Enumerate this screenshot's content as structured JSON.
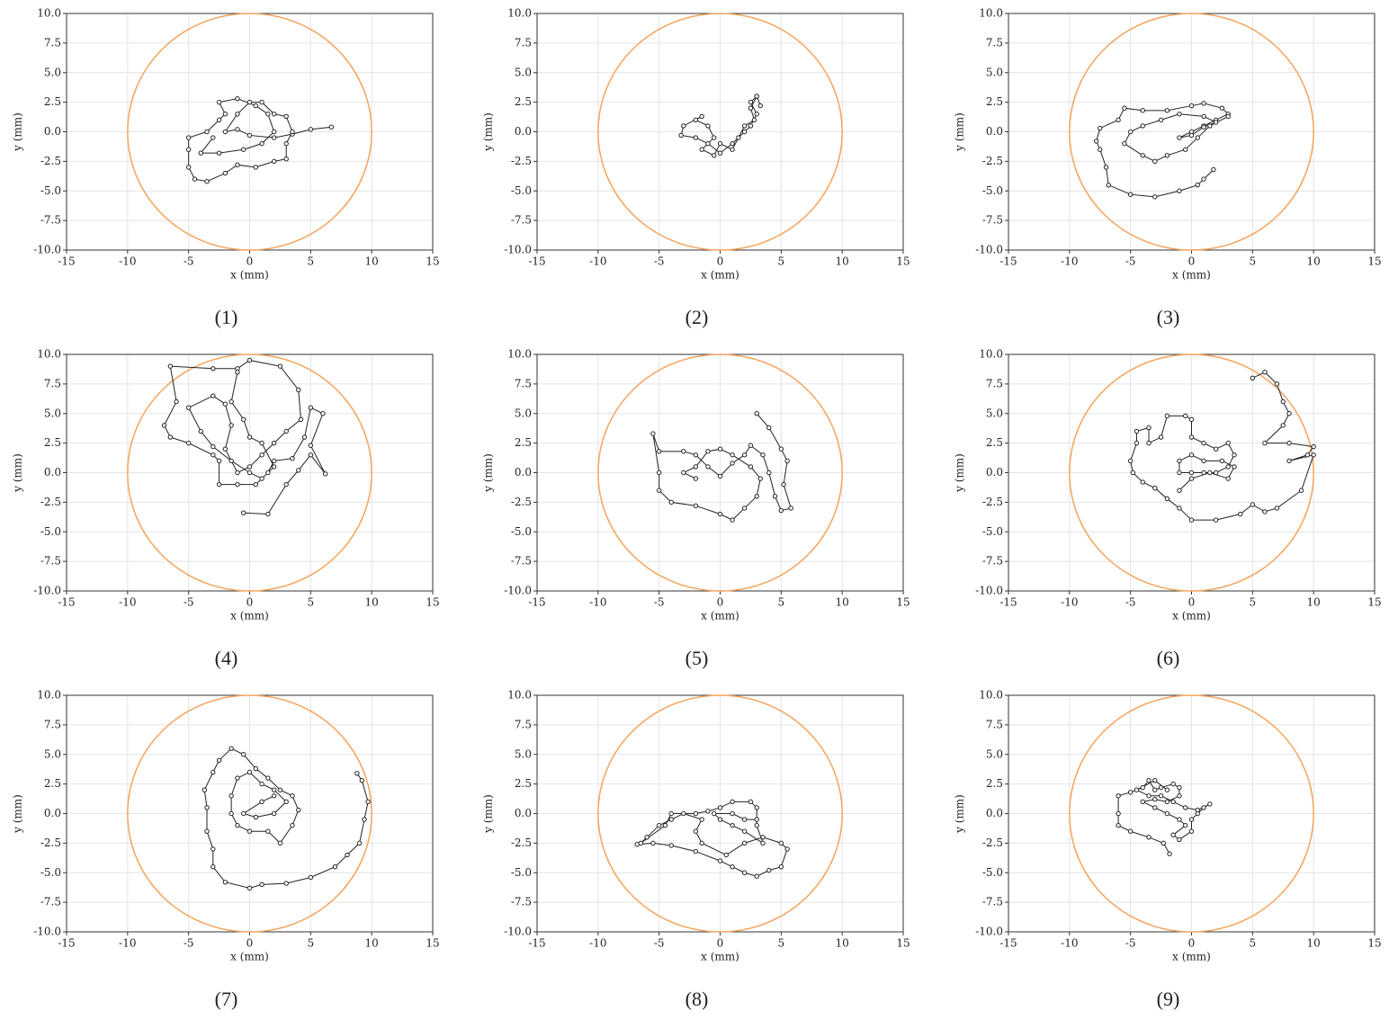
{
  "chart_data": [
    {
      "type": "line",
      "caption": "(1)",
      "x_label": "x (mm)",
      "y_label": "y (mm)",
      "color": "#222222",
      "grid": true,
      "circle": {
        "radius": 10,
        "color": "#f5a35c"
      },
      "xlim": [
        -15,
        15
      ],
      "ylim": [
        -10,
        10
      ],
      "xticks": [
        -15,
        -10,
        -5,
        0,
        5,
        10,
        15
      ],
      "yticks": [
        {
          "value": 10,
          "label": "10.0"
        },
        7.5,
        {
          "value": 5,
          "label": "5.0"
        },
        2.5,
        {
          "value": 0,
          "label": "0.0"
        },
        -2.5,
        {
          "value": -5,
          "label": "-5.0"
        },
        -7.5,
        {
          "value": -10,
          "label": "-10.0"
        }
      ],
      "x": [
        6.7,
        5,
        3.5,
        2,
        0,
        -1,
        -2,
        -1,
        0,
        1,
        2,
        3,
        3.5,
        3,
        3,
        2,
        0.5,
        -1,
        -2,
        -3.5,
        -4.5,
        -5,
        -5,
        -5,
        -3.5,
        -2.5,
        -2,
        -2.5,
        -1,
        0.5,
        1.5,
        2,
        1,
        -0.5,
        -2.5,
        -4,
        -3
      ],
      "y": [
        0.4,
        0.2,
        -0.2,
        -0.5,
        -0.3,
        0.2,
        0,
        1.5,
        2.5,
        2.5,
        1.5,
        1.3,
        0,
        -1,
        -2.3,
        -2.5,
        -3,
        -2.8,
        -3.5,
        -4.2,
        -4,
        -3,
        -1.5,
        -0.5,
        0,
        1,
        1.5,
        2.5,
        2.8,
        2.2,
        1.5,
        0,
        -1,
        -1.5,
        -1.8,
        -1.8,
        -0.5
      ]
    },
    {
      "type": "line",
      "caption": "(2)",
      "x_label": "x (mm)",
      "y_label": "y (mm)",
      "color": "#222222",
      "grid": true,
      "circle": {
        "radius": 10,
        "color": "#f5a35c"
      },
      "xlim": [
        -15,
        15
      ],
      "ylim": [
        -10,
        10
      ],
      "xticks": [
        -15,
        -10,
        -5,
        0,
        5,
        10,
        15
      ],
      "yticks": [
        {
          "value": 10,
          "label": "10.0"
        },
        7.5,
        {
          "value": 5,
          "label": "5.0"
        },
        2.5,
        {
          "value": 0,
          "label": "0.0"
        },
        -2.5,
        {
          "value": -5,
          "label": "-5.0"
        },
        -7.5,
        {
          "value": -10,
          "label": "-10.0"
        }
      ],
      "x": [
        3.3,
        3,
        2.5,
        2.8,
        2,
        1.5,
        1,
        0,
        -0.5,
        -1.5,
        -0.5,
        -1,
        -2,
        -1.5,
        -3,
        -3.2,
        -2,
        -1,
        0,
        1,
        2,
        2.5,
        3,
        2.5,
        3
      ],
      "y": [
        2.2,
        3,
        2,
        1,
        0.5,
        -0.5,
        -1.5,
        -1,
        -2,
        -1.5,
        -0.5,
        0.5,
        1,
        1.3,
        0.5,
        -0.3,
        -0.5,
        -1,
        -1.8,
        -1,
        0,
        0.5,
        1.5,
        2.5,
        3
      ]
    },
    {
      "type": "line",
      "caption": "(3)",
      "x_label": "x (mm)",
      "y_label": "y (mm)",
      "color": "#222222",
      "grid": true,
      "circle": {
        "radius": 10,
        "color": "#f5a35c"
      },
      "xlim": [
        -15,
        15
      ],
      "ylim": [
        -10,
        10
      ],
      "xticks": [
        -15,
        -10,
        -5,
        0,
        5,
        10,
        15
      ],
      "yticks": [
        {
          "value": 10,
          "label": "10.0"
        },
        7.5,
        {
          "value": 5,
          "label": "5.0"
        },
        2.5,
        {
          "value": 0,
          "label": "0.0"
        },
        -2.5,
        {
          "value": -5,
          "label": "-5.0"
        },
        -7.5,
        {
          "value": -10,
          "label": "-10.0"
        }
      ],
      "x": [
        1.8,
        1,
        0.5,
        -1,
        -3,
        -5,
        -6.8,
        -7,
        -7.5,
        -7.8,
        -7.5,
        -6,
        -5.5,
        -4,
        -2,
        0,
        1,
        2.5,
        3,
        2,
        1,
        0,
        -1,
        0,
        1,
        2,
        1,
        -1,
        -2.5,
        -4,
        -5,
        -5.5,
        -4,
        -3,
        -2,
        -0.5,
        0.5,
        1.5,
        3
      ],
      "y": [
        -3.2,
        -4,
        -4.5,
        -5,
        -5.5,
        -5.3,
        -4.5,
        -3,
        -1.5,
        -0.8,
        0.3,
        1,
        2,
        1.8,
        1.8,
        2.2,
        2.4,
        2,
        1.5,
        1,
        0.5,
        0,
        -0.5,
        -0.3,
        0.4,
        0.8,
        1.3,
        1.5,
        1,
        0.5,
        0,
        -1,
        -2,
        -2.5,
        -2,
        -1.5,
        -0.5,
        0.5,
        1.3
      ]
    },
    {
      "type": "line",
      "caption": "(4)",
      "x_label": "x (mm)",
      "y_label": "y (mm)",
      "color": "#222222",
      "grid": true,
      "circle": {
        "radius": 10,
        "color": "#f5a35c"
      },
      "xlim": [
        -15,
        15
      ],
      "ylim": [
        -10,
        10
      ],
      "xticks": [
        -15,
        -10,
        -5,
        0,
        5,
        10,
        15
      ],
      "yticks": [
        {
          "value": 10,
          "label": "10.0"
        },
        7.5,
        {
          "value": 5,
          "label": "5.0"
        },
        2.5,
        {
          "value": 0,
          "label": "0.0"
        },
        -2.5,
        {
          "value": -5,
          "label": "-5.0"
        },
        -7.5,
        {
          "value": -10,
          "label": "-10.0"
        }
      ],
      "x": [
        -0.5,
        1.5,
        3,
        4,
        5,
        6.2,
        5,
        6,
        5,
        4.5,
        3.5,
        2,
        1.5,
        0.5,
        -1,
        -2.5,
        -2.5,
        -3,
        -5,
        -6.5,
        -7,
        -6,
        -6.5,
        -3,
        -1,
        0,
        2.5,
        4,
        4.2,
        3,
        2,
        1,
        0,
        -1,
        -2,
        -1.5,
        -2,
        -3,
        -5,
        -4,
        -3,
        -1.5,
        0,
        1,
        2,
        1,
        0,
        -0.5,
        -1.5,
        -1
      ],
      "y": [
        -3.4,
        -3.5,
        -1,
        0.2,
        1.5,
        -0.1,
        2.3,
        5,
        5.5,
        3,
        1.2,
        1,
        0,
        -1,
        -1,
        -1,
        1,
        1.5,
        2.5,
        3,
        4,
        6,
        9,
        8.8,
        8.8,
        9.5,
        9,
        7,
        4.5,
        3.5,
        2.5,
        1.5,
        0.5,
        0,
        2,
        4,
        5.8,
        6.5,
        5.5,
        3.5,
        2.2,
        1,
        0,
        -0.5,
        0.5,
        2.5,
        3,
        4.5,
        6,
        8.5
      ]
    },
    {
      "type": "line",
      "caption": "(5)",
      "x_label": "x (mm)",
      "y_label": "y (mm)",
      "color": "#222222",
      "grid": true,
      "circle": {
        "radius": 10,
        "color": "#f5a35c"
      },
      "xlim": [
        -15,
        15
      ],
      "ylim": [
        -10,
        10
      ],
      "xticks": [
        -15,
        -10,
        -5,
        0,
        5,
        10,
        15
      ],
      "yticks": [
        {
          "value": 10,
          "label": "10.0"
        },
        7.5,
        {
          "value": 5,
          "label": "5.0"
        },
        2.5,
        {
          "value": 0,
          "label": "0.0"
        },
        -2.5,
        {
          "value": -5,
          "label": "-5.0"
        },
        -7.5,
        {
          "value": -10,
          "label": "-10.0"
        }
      ],
      "x": [
        3,
        4,
        5,
        5.5,
        5.2,
        5.8,
        5,
        4.5,
        4,
        3.5,
        2.5,
        2,
        1,
        0,
        -1,
        -2,
        -3,
        -5,
        -5.5,
        -5,
        -5,
        -4,
        -2,
        0,
        1,
        2,
        3,
        3.3,
        2.5,
        1,
        0,
        -1,
        -2,
        -3,
        -2
      ],
      "y": [
        5,
        3.8,
        2,
        1,
        -1,
        -3,
        -3.2,
        -2,
        0,
        1.5,
        2.3,
        1.5,
        0.8,
        -0.3,
        0.5,
        1.5,
        1.8,
        1.8,
        3.3,
        0,
        -1.5,
        -2.5,
        -2.8,
        -3.5,
        -4,
        -3,
        -2,
        -0.5,
        0.5,
        1.5,
        2,
        1.8,
        0.5,
        0,
        -0.5
      ]
    },
    {
      "type": "line",
      "caption": "(6)",
      "x_label": "x (mm)",
      "y_label": "y (mm)",
      "color": "#222222",
      "grid": true,
      "circle": {
        "radius": 10,
        "color": "#f5a35c"
      },
      "xlim": [
        -15,
        15
      ],
      "ylim": [
        -10,
        10
      ],
      "xticks": [
        -15,
        -10,
        -5,
        0,
        5,
        10,
        15
      ],
      "yticks": [
        {
          "value": 10,
          "label": "10.0"
        },
        7.5,
        {
          "value": 5,
          "label": "5.0"
        },
        2.5,
        {
          "value": 0,
          "label": "0.0"
        },
        -2.5,
        {
          "value": -5,
          "label": "-5.0"
        },
        -7.5,
        {
          "value": -10,
          "label": "-10.0"
        }
      ],
      "x": [
        5,
        6,
        7,
        7.5,
        8,
        7.5,
        6,
        8,
        10,
        9.5,
        8,
        10,
        9,
        7,
        6,
        5,
        4,
        2,
        0,
        -1,
        -2,
        -3,
        -4,
        -4.8,
        -5,
        -4.5,
        -4.5,
        -3.5,
        -3.5,
        -2.5,
        -2,
        -0.5,
        0,
        0,
        1,
        2,
        3,
        3.5,
        3,
        2,
        1,
        0,
        -1,
        -1,
        0,
        1,
        2.5,
        3.5,
        3,
        1.5,
        0,
        -1
      ],
      "y": [
        8,
        8.5,
        7.5,
        6,
        5,
        4,
        2.5,
        2.5,
        2.2,
        1.5,
        1,
        1.5,
        -1.5,
        -3,
        -3.3,
        -2.7,
        -3.5,
        -4,
        -4,
        -3,
        -2.2,
        -1.3,
        -0.8,
        0,
        1,
        2.5,
        3.5,
        3.8,
        2.5,
        3,
        4.8,
        4.8,
        4.5,
        3,
        2.5,
        2,
        2.5,
        1.5,
        0.5,
        0,
        0,
        0,
        0,
        1,
        1.5,
        1,
        1,
        0.5,
        -0.5,
        0,
        -0.5,
        -1.5
      ]
    },
    {
      "type": "line",
      "caption": "(7)",
      "x_label": "x (mm)",
      "y_label": "y (mm)",
      "color": "#222222",
      "grid": true,
      "circle": {
        "radius": 10,
        "color": "#f5a35c"
      },
      "xlim": [
        -15,
        15
      ],
      "ylim": [
        -10,
        10
      ],
      "xticks": [
        -15,
        -10,
        -5,
        0,
        5,
        10,
        15
      ],
      "yticks": [
        {
          "value": 10,
          "label": "10.0"
        },
        7.5,
        {
          "value": 5,
          "label": "5.0"
        },
        2.5,
        {
          "value": 0,
          "label": "0.0"
        },
        -2.5,
        {
          "value": -5,
          "label": "-5.0"
        },
        -7.5,
        {
          "value": -10,
          "label": "-10.0"
        }
      ],
      "x": [
        8.8,
        9.2,
        9.7,
        9.4,
        9,
        8,
        7,
        5,
        3,
        1,
        0,
        -2,
        -3,
        -3,
        -3.5,
        -3.5,
        -3.7,
        -3,
        -2.5,
        -1.5,
        -0.5,
        0.5,
        1.5,
        2.5,
        3.5,
        4,
        3.5,
        2.5,
        1.5,
        0,
        -1,
        -1.5,
        -1.5,
        -1,
        0,
        1,
        2,
        3,
        2,
        0.5,
        -0.5,
        1,
        2
      ],
      "y": [
        3.4,
        2.8,
        1,
        -0.5,
        -2.5,
        -3.5,
        -4.5,
        -5.4,
        -5.9,
        -6,
        -6.3,
        -5.8,
        -4.5,
        -3,
        -1.5,
        0.5,
        2,
        3.5,
        4.5,
        5.5,
        5,
        3.8,
        3,
        2,
        1.5,
        0.3,
        -1,
        -2.5,
        -1.5,
        -1.5,
        -1,
        0,
        1.5,
        3,
        3.5,
        2.5,
        2,
        1,
        0,
        -0.3,
        0,
        1,
        1.5
      ]
    },
    {
      "type": "line",
      "caption": "(8)",
      "x_label": "x (mm)",
      "y_label": "y (mm)",
      "color": "#222222",
      "grid": true,
      "circle": {
        "radius": 10,
        "color": "#f5a35c"
      },
      "xlim": [
        -15,
        15
      ],
      "ylim": [
        -10,
        10
      ],
      "xticks": [
        -15,
        -10,
        -5,
        0,
        5,
        10,
        15
      ],
      "yticks": [
        {
          "value": 10,
          "label": "10.0"
        },
        7.5,
        {
          "value": 5,
          "label": "5.0"
        },
        2.5,
        {
          "value": 0,
          "label": "0.0"
        },
        -2.5,
        {
          "value": -5,
          "label": "-5.0"
        },
        -7.5,
        {
          "value": -10,
          "label": "-10.0"
        }
      ],
      "x": [
        -6.8,
        -5.5,
        -4,
        -2,
        0,
        1,
        2,
        3,
        4,
        5,
        5.5,
        5,
        3.5,
        2,
        0.5,
        -1.5,
        -2,
        -1.5,
        -3,
        -4,
        -5,
        -6,
        -6.5,
        -4.5,
        -4,
        -2,
        -1,
        0,
        1,
        2.5,
        3,
        3,
        3.5,
        2,
        1,
        0,
        -0.5,
        1,
        2,
        3
      ],
      "y": [
        -2.6,
        -2.5,
        -2.7,
        -3.2,
        -4,
        -4.5,
        -5,
        -5.3,
        -4.8,
        -4.5,
        -3,
        -2.5,
        -2,
        -2.5,
        -3.5,
        -2.5,
        -1.5,
        -0.5,
        0,
        -0.5,
        -1,
        -2,
        -2.5,
        -1,
        0,
        0,
        0.2,
        0.5,
        1,
        1,
        0.5,
        -1,
        -2.5,
        -1.5,
        -1,
        -0.5,
        0,
        0,
        -0.5,
        -0.5
      ]
    },
    {
      "type": "line",
      "caption": "(9)",
      "x_label": "x (mm)",
      "y_label": "y (mm)",
      "color": "#222222",
      "grid": true,
      "circle": {
        "radius": 10,
        "color": "#f5a35c"
      },
      "xlim": [
        -15,
        15
      ],
      "ylim": [
        -10,
        10
      ],
      "xticks": [
        -15,
        -10,
        -5,
        0,
        5,
        10,
        15
      ],
      "yticks": [
        {
          "value": 10,
          "label": "10.0"
        },
        7.5,
        {
          "value": 5,
          "label": "5.0"
        },
        2.5,
        {
          "value": 0,
          "label": "0.0"
        },
        -2.5,
        {
          "value": -5,
          "label": "-5.0"
        },
        -7.5,
        {
          "value": -10,
          "label": "-10.0"
        }
      ],
      "x": [
        -1.8,
        -2.3,
        -3.5,
        -5,
        -6,
        -6,
        -6,
        -5,
        -4,
        -3.5,
        -3,
        -2.5,
        -1.5,
        -1,
        -1,
        -2,
        -3,
        -4,
        -3,
        -2,
        -1,
        -0.5,
        -1.5,
        -1,
        0,
        0,
        0.5,
        1,
        1.5,
        0.5,
        -0.5,
        -1.5,
        -2.5,
        -3.5,
        -4.5,
        -3,
        -2
      ],
      "y": [
        -3.4,
        -2.5,
        -2,
        -1.5,
        -1,
        0,
        1.5,
        1.8,
        2.2,
        2.8,
        2,
        2.2,
        2.5,
        2.2,
        1.5,
        1,
        1.2,
        1,
        0.5,
        0,
        -0.5,
        -1,
        -1.8,
        -2.2,
        -1.5,
        -0.5,
        0,
        0.5,
        0.8,
        0.3,
        0.5,
        1,
        1.5,
        1.5,
        2,
        2.8,
        2
      ]
    }
  ]
}
